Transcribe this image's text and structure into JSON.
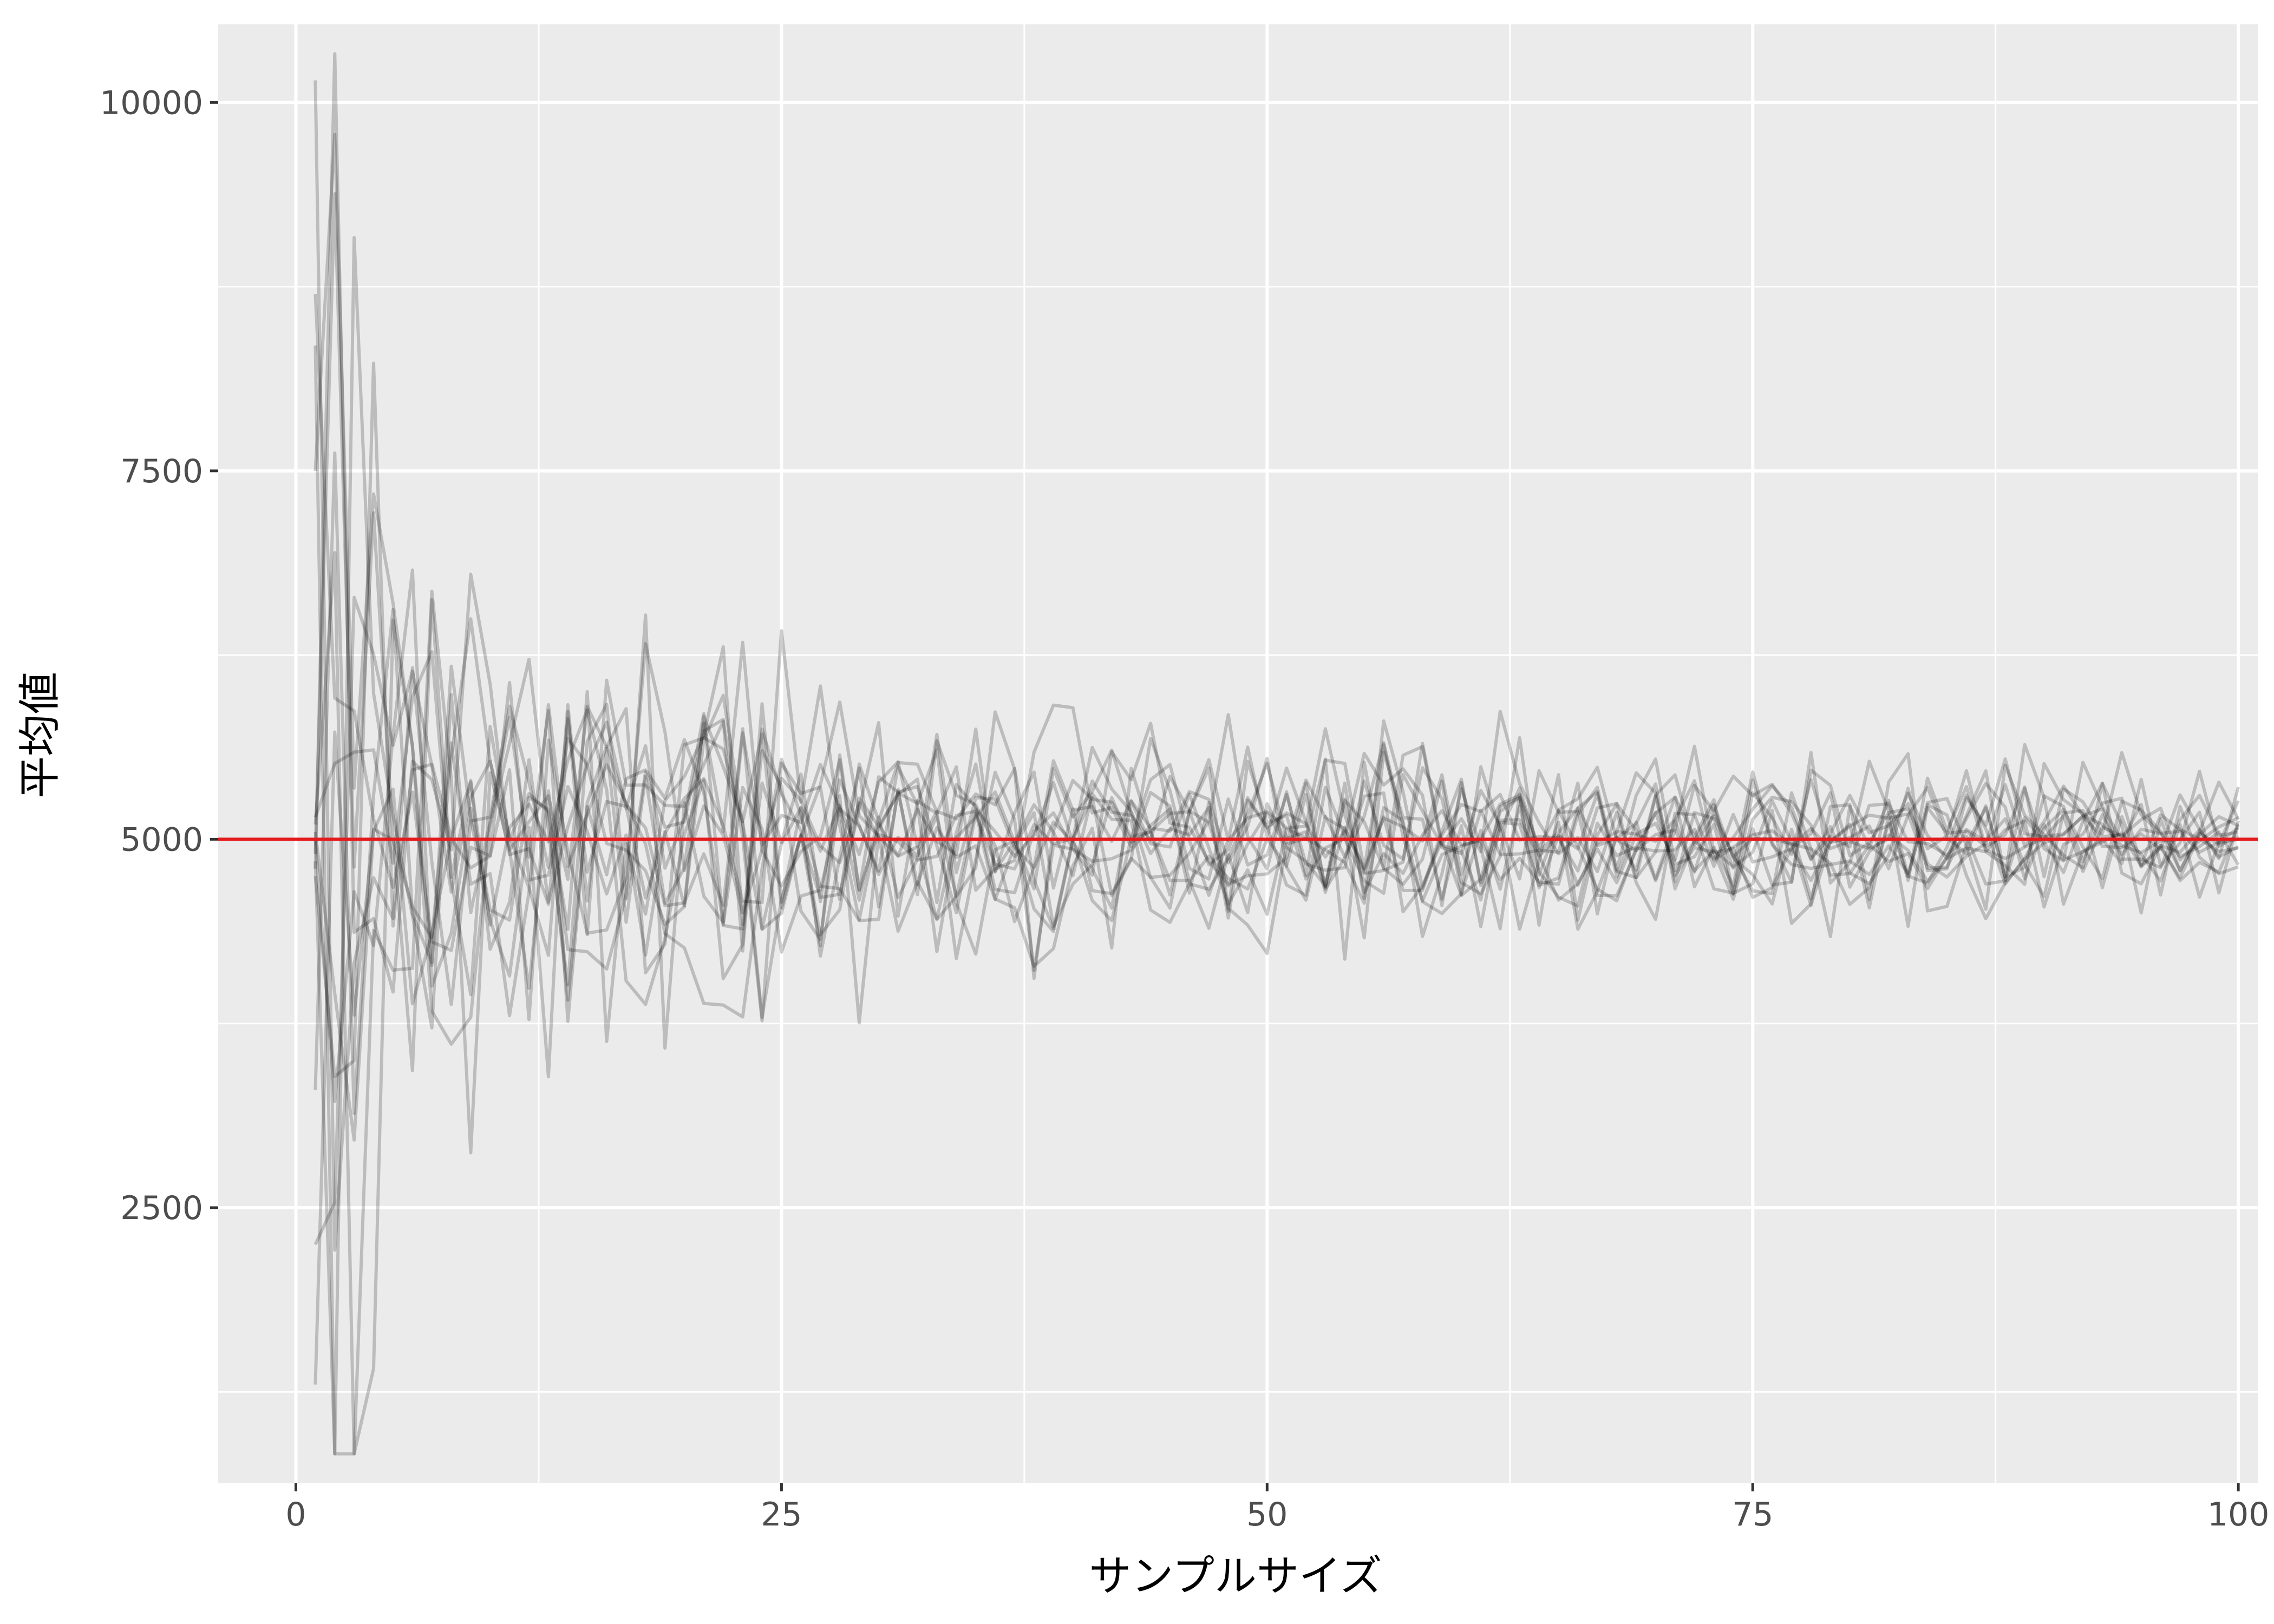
{
  "chart_data": {
    "type": "line",
    "xlabel": "サンプルサイズ",
    "ylabel": "平均値",
    "xlim": [
      -4,
      101
    ],
    "ylim": [
      630,
      10530
    ],
    "x_ticks": [
      0,
      25,
      50,
      75,
      100
    ],
    "y_ticks": [
      2500,
      5000,
      7500,
      10000
    ],
    "x_minor": [
      12.5,
      37.5,
      62.5,
      87.5
    ],
    "y_minor": [
      1250,
      3750,
      6250,
      8750
    ],
    "grid": true,
    "panel_background": "#EBEBEB",
    "grid_color": "#FFFFFF",
    "line_color": "#000000",
    "line_opacity": 0.2,
    "reference_line": {
      "y": 5000,
      "color": "#E41A1C"
    },
    "x_range": [
      1,
      100
    ],
    "series_count": 15,
    "series_start": [
      10150,
      8700,
      8350,
      7500,
      5150,
      4800,
      3300,
      2250,
      1300,
      5100,
      4900,
      4850,
      5000,
      4750,
      5050
    ],
    "series_spread": [
      [
        1,
        3000
      ],
      [
        5,
        1300
      ],
      [
        10,
        700
      ],
      [
        20,
        550
      ],
      [
        30,
        420
      ],
      [
        50,
        320
      ],
      [
        60,
        300
      ],
      [
        80,
        250
      ],
      [
        100,
        210
      ]
    ]
  }
}
